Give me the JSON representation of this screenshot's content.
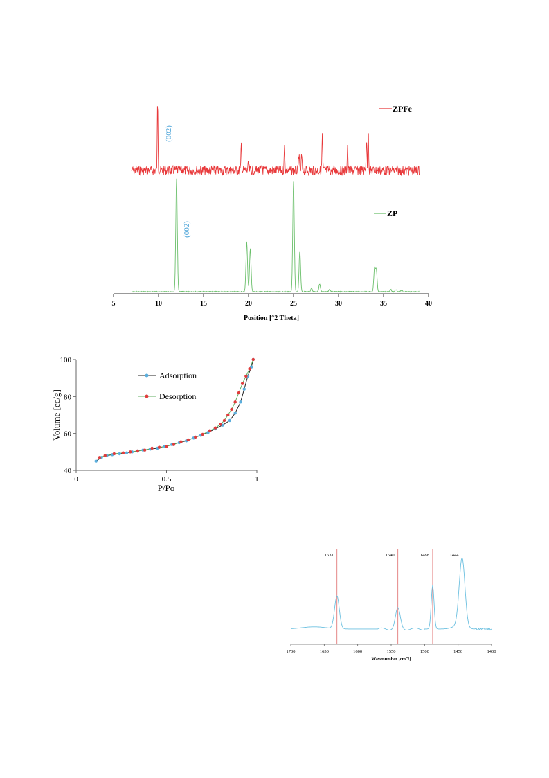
{
  "chart_data": [
    {
      "type": "line",
      "xlabel": "Position  [°2 Theta]",
      "xlim": [
        5,
        40
      ],
      "x_ticks": [
        "5",
        "10",
        "15",
        "20",
        "25",
        "30",
        "35",
        "40"
      ],
      "legend_placement": "right",
      "series": [
        {
          "name": "ZPFe",
          "color": "#e8393b",
          "annotation": "(002)",
          "baseline": 0,
          "peaks": [
            {
              "x": 9.9,
              "h": 1.0
            },
            {
              "x": 19.2,
              "h": 0.38
            },
            {
              "x": 20.0,
              "h": 0.1
            },
            {
              "x": 21.5,
              "h": 0.08
            },
            {
              "x": 24.0,
              "h": 0.35
            },
            {
              "x": 25.6,
              "h": 0.25
            },
            {
              "x": 25.9,
              "h": 0.22
            },
            {
              "x": 28.2,
              "h": 0.52
            },
            {
              "x": 31.0,
              "h": 0.36
            },
            {
              "x": 33.1,
              "h": 0.48
            },
            {
              "x": 33.3,
              "h": 0.62
            }
          ]
        },
        {
          "name": "ZP",
          "color": "#6abf6a",
          "annotation": "(002)",
          "baseline": 0,
          "peaks": [
            {
              "x": 12.0,
              "h": 1.0
            },
            {
              "x": 19.8,
              "h": 0.44
            },
            {
              "x": 20.2,
              "h": 0.38
            },
            {
              "x": 25.0,
              "h": 0.98
            },
            {
              "x": 25.7,
              "h": 0.36
            },
            {
              "x": 27.0,
              "h": 0.03
            },
            {
              "x": 27.9,
              "h": 0.07
            },
            {
              "x": 29.0,
              "h": 0.02
            },
            {
              "x": 34.0,
              "h": 0.21
            },
            {
              "x": 34.2,
              "h": 0.19
            },
            {
              "x": 35.8,
              "h": 0.02
            },
            {
              "x": 36.4,
              "h": 0.02
            },
            {
              "x": 37.0,
              "h": 0.015
            }
          ]
        }
      ]
    },
    {
      "type": "line",
      "xlabel": "P/Po",
      "ylabel": "Volume [cc/g]",
      "xlim": [
        0,
        1
      ],
      "ylim": [
        40,
        100
      ],
      "x_ticks": [
        "0",
        "0.5",
        "1"
      ],
      "y_ticks": [
        "40",
        "60",
        "80",
        "100"
      ],
      "legend_placement": "top-center",
      "series": [
        {
          "name": "Adsorption",
          "color": "#222222",
          "marker_color": "#5aaedd",
          "x": [
            0.11,
            0.14,
            0.17,
            0.2,
            0.24,
            0.28,
            0.31,
            0.34,
            0.37,
            0.41,
            0.45,
            0.49,
            0.53,
            0.57,
            0.61,
            0.65,
            0.69,
            0.73,
            0.77,
            0.81,
            0.85,
            0.88,
            0.91,
            0.93,
            0.95,
            0.97,
            0.98
          ],
          "y": [
            45,
            47,
            48,
            48.5,
            49,
            49.5,
            50,
            50.5,
            51,
            51.5,
            52,
            53,
            54,
            55,
            56,
            57.5,
            59,
            60.5,
            62.5,
            64.5,
            67,
            71,
            77,
            84,
            91,
            96,
            100
          ]
        },
        {
          "name": "Desorption",
          "color": "#5fae5f",
          "marker_color": "#e03c3c",
          "x": [
            0.13,
            0.16,
            0.21,
            0.26,
            0.3,
            0.34,
            0.38,
            0.42,
            0.46,
            0.5,
            0.54,
            0.58,
            0.62,
            0.66,
            0.7,
            0.74,
            0.77,
            0.8,
            0.82,
            0.84,
            0.86,
            0.88,
            0.9,
            0.92,
            0.94,
            0.96,
            0.98
          ],
          "y": [
            47,
            48,
            49,
            49.5,
            50,
            50.5,
            51,
            52,
            52.5,
            53,
            54,
            55.5,
            56.5,
            58,
            59.5,
            61.5,
            63,
            65,
            67,
            70,
            73,
            77,
            82,
            87,
            91,
            95,
            100
          ]
        }
      ]
    },
    {
      "type": "line",
      "xlabel": "Wavenumber  [cm⁻¹]",
      "xlim": [
        1700,
        1400
      ],
      "x_ticks": [
        "1700",
        "1650",
        "1600",
        "1550",
        "1500",
        "1450",
        "1400"
      ],
      "series": [
        {
          "name": "",
          "color": "#6cc0e0",
          "peaks": [
            {
              "x": 1631,
              "h": 0.45
            },
            {
              "x": 1540,
              "h": 0.28
            },
            {
              "x": 1488,
              "h": 0.6
            },
            {
              "x": 1444,
              "h": 0.95
            }
          ]
        }
      ],
      "marker_lines": {
        "color": "#e27a7a",
        "values": [
          1631,
          1540,
          1488,
          1444
        ],
        "labels": [
          "1631",
          "1540",
          "1488",
          "1444"
        ]
      }
    }
  ]
}
